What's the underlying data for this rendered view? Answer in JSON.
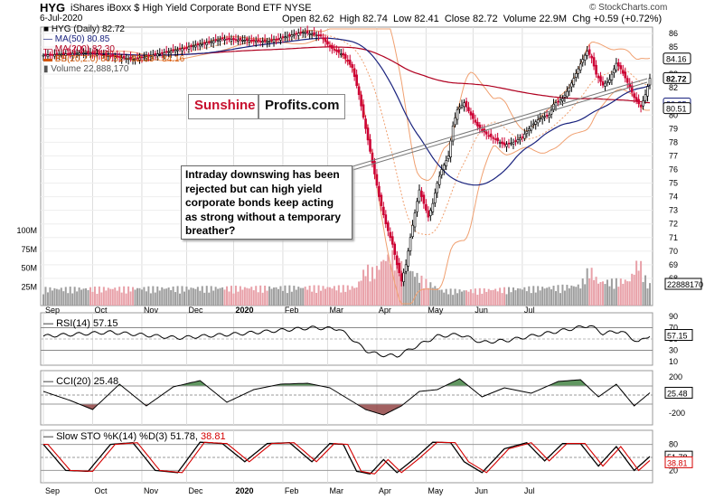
{
  "header": {
    "ticker": "HYG",
    "name": "iShares iBoxx $ High Yield Corporate Bond ETF  NYSE",
    "date": "6-Jul-2020",
    "open": "Open 82.62",
    "high": "High 82.74",
    "low": "Low 82.41",
    "close": "Close 82.72",
    "volume": "Volume 22.9M",
    "chg": "Chg +0.59 (+0.72%)",
    "watermark": "© StockCharts.com"
  },
  "legend": {
    "price": "HYG (Daily) 82.72",
    "ma50": "MA(50) 80.85",
    "ma200": "MA(200) 82.30",
    "bb": "BB(20,2.0) 80.51 - 82.33 - 84.16",
    "vol": "Volume 22,888,170"
  },
  "colors": {
    "up": "#000000",
    "down": "#cc0033",
    "ma50": "#1a237e",
    "ma200": "#b00020",
    "bb": "#f0a070",
    "vol_up": "#9e9e9e",
    "vol_down": "#e8a0a8",
    "pos_fill": "#3a7d3a",
    "neg_fill": "#8b3a3a",
    "slow_k": "#000000",
    "slow_d": "#d40000",
    "brand_red": "#c8102e"
  },
  "logo": {
    "part1": "Sunshine",
    "part2": "Profits.com"
  },
  "annotation": "Intraday downswing has been rejected but can high yield corporate bonds keep acting as strong without a temporary breather?",
  "panels": {
    "rsi_label": "RSI(14) 57.15",
    "cci_label": "CCI(20) 25.48",
    "sto_label_a": "Slow STO %K(14) %D(3) 51.78, ",
    "sto_label_b": "38.81"
  },
  "chart_data": {
    "type": "candlestick",
    "months": [
      "Sep",
      "Oct",
      "Nov",
      "Dec",
      "2020",
      "Feb",
      "Mar",
      "Apr",
      "May",
      "Jun",
      "Jul"
    ],
    "price_axis": {
      "ticks": [
        "86",
        "85",
        "84",
        "83",
        "82",
        "81",
        "80",
        "79",
        "78",
        "77",
        "76",
        "75",
        "74",
        "73",
        "72",
        "71",
        "70",
        "69",
        "68"
      ],
      "range": [
        67,
        87
      ],
      "tags": [
        "84.16",
        "82.72",
        "80.85",
        "80.51"
      ]
    },
    "volume_axis": {
      "ticks": [
        "100M",
        "75M",
        "50M",
        "25M"
      ],
      "max": 120,
      "tag": "22888170"
    },
    "rsi_axis": {
      "ticks": [
        "90",
        "70",
        "50",
        "30",
        "10"
      ],
      "tag": "57.15"
    },
    "cci_axis": {
      "ticks": [
        "200",
        "0",
        "-200"
      ],
      "tag": "25.48"
    },
    "sto_axis": {
      "ticks": [
        "80",
        "50",
        "20"
      ],
      "tags": [
        "51.78",
        "38.81"
      ]
    },
    "price_keys": [
      [
        0,
        84.4
      ],
      [
        20,
        84.6
      ],
      [
        40,
        84.1
      ],
      [
        60,
        84.8
      ],
      [
        80,
        85.6
      ],
      [
        100,
        85.4
      ],
      [
        116,
        86.1
      ],
      [
        124,
        85.8
      ],
      [
        128,
        85.0
      ],
      [
        134,
        84.4
      ],
      [
        138,
        83.5
      ],
      [
        141,
        81.5
      ],
      [
        144,
        79.0
      ],
      [
        147,
        76.5
      ],
      [
        150,
        74.0
      ],
      [
        153,
        72.0
      ],
      [
        156,
        70.5
      ],
      [
        158,
        69.0
      ],
      [
        160,
        67.8
      ],
      [
        162,
        69.0
      ],
      [
        164,
        71.0
      ],
      [
        166,
        72.8
      ],
      [
        168,
        74.5
      ],
      [
        170,
        73.5
      ],
      [
        172,
        72.5
      ],
      [
        174,
        73.5
      ],
      [
        176,
        75.0
      ],
      [
        178,
        76.0
      ],
      [
        181,
        77.0
      ],
      [
        183,
        79.2
      ],
      [
        185,
        80.4
      ],
      [
        188,
        80.9
      ],
      [
        191,
        80.0
      ],
      [
        194,
        79.2
      ],
      [
        198,
        78.6
      ],
      [
        202,
        78.2
      ],
      [
        206,
        77.8
      ],
      [
        210,
        78.0
      ],
      [
        214,
        78.4
      ],
      [
        218,
        79.2
      ],
      [
        222,
        79.8
      ],
      [
        226,
        80.0
      ],
      [
        228,
        80.8
      ],
      [
        232,
        81.2
      ],
      [
        235,
        82.0
      ],
      [
        239,
        83.4
      ],
      [
        241,
        84.1
      ],
      [
        243,
        84.7
      ],
      [
        245,
        84.2
      ],
      [
        247,
        83.0
      ],
      [
        250,
        82.2
      ],
      [
        253,
        82.6
      ],
      [
        256,
        83.8
      ],
      [
        258,
        83.4
      ],
      [
        261,
        82.4
      ],
      [
        264,
        81.3
      ],
      [
        267,
        80.6
      ],
      [
        269,
        81.5
      ],
      [
        271,
        82.7
      ]
    ],
    "volume_keys": [
      [
        0,
        20
      ],
      [
        140,
        22
      ],
      [
        144,
        45
      ],
      [
        148,
        40
      ],
      [
        152,
        55
      ],
      [
        156,
        60
      ],
      [
        160,
        48
      ],
      [
        165,
        40
      ],
      [
        170,
        30
      ],
      [
        178,
        18
      ],
      [
        190,
        18
      ],
      [
        210,
        20
      ],
      [
        230,
        22
      ],
      [
        240,
        24
      ],
      [
        244,
        45
      ],
      [
        248,
        28
      ],
      [
        262,
        30
      ],
      [
        266,
        55
      ],
      [
        270,
        25
      ]
    ],
    "rsi_keys": [
      [
        0,
        55
      ],
      [
        30,
        62
      ],
      [
        60,
        52
      ],
      [
        90,
        60
      ],
      [
        120,
        70
      ],
      [
        132,
        68
      ],
      [
        138,
        50
      ],
      [
        144,
        30
      ],
      [
        150,
        22
      ],
      [
        158,
        20
      ],
      [
        166,
        36
      ],
      [
        176,
        55
      ],
      [
        186,
        58
      ],
      [
        196,
        44
      ],
      [
        208,
        48
      ],
      [
        222,
        58
      ],
      [
        236,
        68
      ],
      [
        244,
        74
      ],
      [
        250,
        60
      ],
      [
        258,
        64
      ],
      [
        266,
        44
      ],
      [
        271,
        57
      ]
    ],
    "cci_keys": [
      [
        0,
        40
      ],
      [
        12,
        -60
      ],
      [
        22,
        -160
      ],
      [
        34,
        120
      ],
      [
        46,
        -120
      ],
      [
        58,
        90
      ],
      [
        70,
        160
      ],
      [
        82,
        -80
      ],
      [
        94,
        60
      ],
      [
        106,
        120
      ],
      [
        118,
        130
      ],
      [
        128,
        80
      ],
      [
        136,
        -40
      ],
      [
        144,
        -160
      ],
      [
        152,
        -220
      ],
      [
        160,
        -120
      ],
      [
        168,
        40
      ],
      [
        176,
        60
      ],
      [
        186,
        180
      ],
      [
        196,
        -20
      ],
      [
        206,
        80
      ],
      [
        218,
        20
      ],
      [
        230,
        150
      ],
      [
        240,
        170
      ],
      [
        248,
        -20
      ],
      [
        256,
        120
      ],
      [
        264,
        -120
      ],
      [
        271,
        25
      ]
    ],
    "sto_keys": [
      [
        0,
        80
      ],
      [
        10,
        20
      ],
      [
        20,
        18
      ],
      [
        30,
        80
      ],
      [
        40,
        84
      ],
      [
        50,
        20
      ],
      [
        60,
        15
      ],
      [
        70,
        85
      ],
      [
        80,
        82
      ],
      [
        90,
        40
      ],
      [
        100,
        82
      ],
      [
        110,
        84
      ],
      [
        120,
        40
      ],
      [
        128,
        82
      ],
      [
        134,
        80
      ],
      [
        140,
        18
      ],
      [
        146,
        12
      ],
      [
        152,
        45
      ],
      [
        158,
        15
      ],
      [
        166,
        48
      ],
      [
        174,
        85
      ],
      [
        182,
        84
      ],
      [
        188,
        40
      ],
      [
        196,
        15
      ],
      [
        206,
        70
      ],
      [
        216,
        84
      ],
      [
        224,
        42
      ],
      [
        232,
        82
      ],
      [
        240,
        82
      ],
      [
        248,
        30
      ],
      [
        256,
        75
      ],
      [
        264,
        20
      ],
      [
        271,
        52
      ]
    ]
  }
}
